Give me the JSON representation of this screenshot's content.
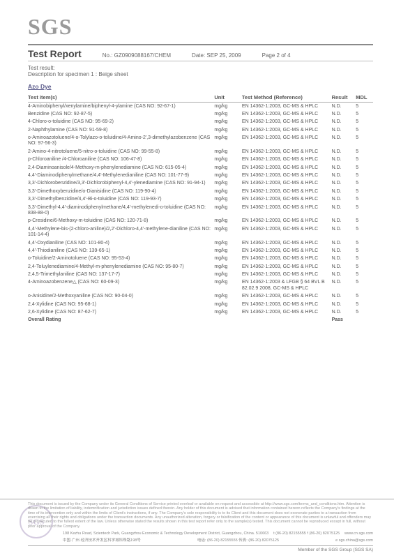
{
  "logo": "SGS",
  "title": "Test Report",
  "report_no_label": "No.:",
  "report_no": "GZ0909088167/CHEM",
  "date_label": "Date:",
  "date": "SEP 25, 2009",
  "page_label": "Page 2 of  4",
  "test_result_label": "Test result:",
  "specimen_desc": "Description for specimen 1 : Beige sheet",
  "section": "Azo Dye",
  "headers": {
    "item": "Test item(s)",
    "unit": "Unit",
    "method": "Test Method (Reference)",
    "result": "Result",
    "mdl": "MDL"
  },
  "std_method": "EN 14362-1:2003, GC-MS & HPLC",
  "alt_method": "EN 14362-1:2003 & LFGB § 64 BVL B 82.02.9 2008, GC-MS & HPLC",
  "rows": [
    {
      "item": "4-Aminobiphenyl/xenylamine/biphenyl-4-ylamine (CAS NO: 92-67-1)",
      "unit": "mg/kg",
      "method": "std",
      "result": "N.D.",
      "mdl": "5"
    },
    {
      "item": "Benzidine (CAS NO: 92-87-5)",
      "unit": "mg/kg",
      "method": "std",
      "result": "N.D.",
      "mdl": "5"
    },
    {
      "item": "4-Chloro-o-toluidine (CAS NO: 95-69-2)",
      "unit": "mg/kg",
      "method": "std",
      "result": "N.D.",
      "mdl": "5"
    },
    {
      "item": "2-Naphthylamine (CAS NO: 91-59-8)",
      "unit": "mg/kg",
      "method": "std",
      "result": "N.D.",
      "mdl": "5"
    },
    {
      "item": "o-Aminoazotoluene/4-o-Tolylazo-o-toluidine/4-Amino-2',3-dimethylazobenzene (CAS NO: 97-56-3)",
      "unit": "mg/kg",
      "method": "std",
      "result": "N.D.",
      "mdl": "5"
    },
    {
      "item": "2-Amino-4-nitrotoluene/5-nitro-o-toluidine (CAS NO: 99-55-8)",
      "unit": "mg/kg",
      "method": "std",
      "result": "N.D.",
      "mdl": "5"
    },
    {
      "item": "p-Chloroaniline /4-Chloroaniline (CAS NO: 106-47-8)",
      "unit": "mg/kg",
      "method": "std",
      "result": "N.D.",
      "mdl": "5"
    },
    {
      "item": "2,4-Diaminoanisole/4-Methoxy-m-phenylenediamine (CAS NO: 615-05-4)",
      "unit": "mg/kg",
      "method": "std",
      "result": "N.D.",
      "mdl": "5"
    },
    {
      "item": "4,4'-Diaminodiphenylmethane/4,4'-Methylenedianiline (CAS NO: 101-77-9)",
      "unit": "mg/kg",
      "method": "std",
      "result": "N.D.",
      "mdl": "5"
    },
    {
      "item": "3,3'-Dichlorobenzidine/3,3'-Dichlorobiphenyl-4,4'-ylenediamine (CAS NO: 91-94-1)",
      "unit": "mg/kg",
      "method": "std",
      "result": "N.D.",
      "mdl": "5"
    },
    {
      "item": "3,3'-Dimethoxybenzidine/o-Dianisidine (CAS NO: 119-90-4)",
      "unit": "mg/kg",
      "method": "std",
      "result": "N.D.",
      "mdl": "5"
    },
    {
      "item": "3,3'-Dimethylbenzidine/4,4'-Bi-o-toluidine (CAS NO: 119-93-7)",
      "unit": "mg/kg",
      "method": "std",
      "result": "N.D.",
      "mdl": "5"
    },
    {
      "item": "3,3'-Dimethyl-4,4'-diaminodiphenylmethane/4,4'-methylenedi-o-toluidine (CAS NO: 838-88-0)",
      "unit": "mg/kg",
      "method": "std",
      "result": "N.D.",
      "mdl": "5"
    },
    {
      "item": "p-Cresidine/6-Methoxy-m-toluidine (CAS NO: 120-71-8)",
      "unit": "mg/kg",
      "method": "std",
      "result": "N.D.",
      "mdl": "5"
    },
    {
      "item": "4,4'-Methylene-bis-(2-chloro-aniline)/2,2'-Dichloro-4,4'-methylene-dianiline (CAS NO: 101-14-4)",
      "unit": "mg/kg",
      "method": "std",
      "result": "N.D.",
      "mdl": "5"
    },
    {
      "item": "4,4'-Oxydianiline (CAS NO: 101-80-4)",
      "unit": "mg/kg",
      "method": "std",
      "result": "N.D.",
      "mdl": "5"
    },
    {
      "item": "4,4'-Thiodianiline (CAS NO: 139-65-1)",
      "unit": "mg/kg",
      "method": "std",
      "result": "N.D.",
      "mdl": "5"
    },
    {
      "item": "o-Toluidine/2-Aminotoluene (CAS NO: 95-53-4)",
      "unit": "mg/kg",
      "method": "std",
      "result": "N.D.",
      "mdl": "5"
    },
    {
      "item": "2,4-Toluylenediamine/4-Methyl-m-phenylenediamine (CAS NO: 95-80-7)",
      "unit": "mg/kg",
      "method": "std",
      "result": "N.D.",
      "mdl": "5"
    },
    {
      "item": "2,4,5-Trimethylaniline (CAS NO: 137-17-7)",
      "unit": "mg/kg",
      "method": "std",
      "result": "N.D.",
      "mdl": "5"
    },
    {
      "item": "4-Aminoazobenzene△ (CAS NO: 60-09-3)",
      "unit": "mg/kg",
      "method": "alt",
      "result": "N.D.",
      "mdl": "5"
    },
    {
      "item": "o-Anisidine/2-Methoxyaniline (CAS NO: 90-04-0)",
      "unit": "mg/kg",
      "method": "std",
      "result": "N.D.",
      "mdl": "5"
    },
    {
      "item": "2,4-Xylidine (CAS NO: 95-68-1)",
      "unit": "mg/kg",
      "method": "std",
      "result": "N.D.",
      "mdl": "5"
    },
    {
      "item": "2,6-Xylidine (CAS NO: 87-62-7)",
      "unit": "mg/kg",
      "method": "std",
      "result": "N.D.",
      "mdl": "5"
    }
  ],
  "overall": {
    "label": "Overall Rating",
    "result": "Pass"
  },
  "footer_disclaimer": "This document is issued by the Company under its General Conditions of Service printed overleaf or available on request and accessible at http://www.sgs.com/terms_and_conditions.htm. Attention is drawn to the limitation of liability, indemnification and jurisdiction issues defined therein. Any holder of this document is advised that information contained hereon reflects the Company's findings at the time of its intervention only and within the limits of Client's instructions, if any. The Company's sole responsibility is to its Client and this document does not exonerate parties to a transaction from exercising all their rights and obligations under the transaction documents. Any unauthorized alteration, forgery or falsification of the content or appearance of this document is unlawful and offenders may be prosecuted to the fullest extent of the law. Unless otherwise stated the results shown in this test report refer only to the sample(s) tested. This document cannot be reproduced except in full, without prior approval of the Company.",
  "addr_en": "198 Kezhu Road, Scientech Park, Guangzhou Economic & Technology Development District, Guangzhou, China. 510663",
  "tel": "t (86-20) 82155555  f (86-20) 82075125",
  "web": "www.cn.sgs.com",
  "addr_cn": "中国·广州·经济技术开发区科学城科珠路198号",
  "tel_cn": "电话: (86-20) 82155555  传真: (86-20) 82075125",
  "email": "e sgs.china@sgs.com",
  "member": "Member of the SGS Group (SGS SA)"
}
